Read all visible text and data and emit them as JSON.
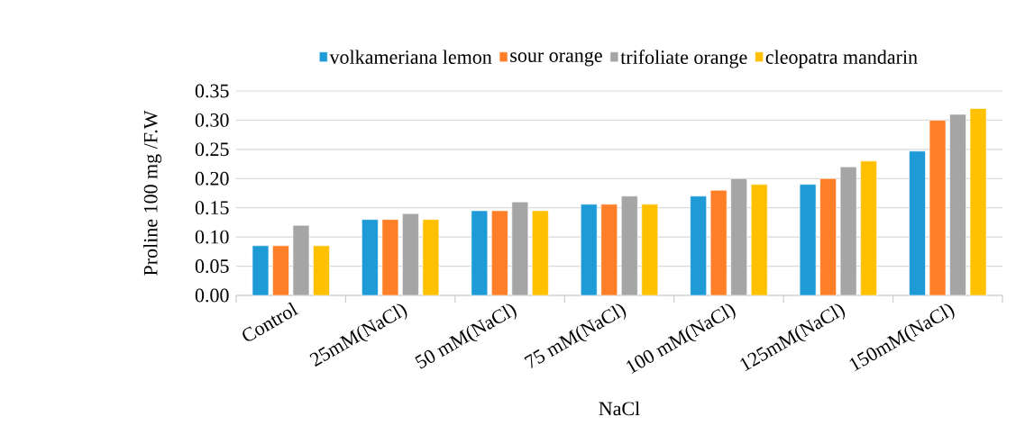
{
  "chart_data": {
    "type": "bar",
    "xlabel": "NaCl",
    "ylabel": "Proline 100 mg /F.W",
    "categories": [
      "Control",
      "25mM(NaCl)",
      "50 mM(NaCl)",
      "75 mM(NaCl)",
      "100 mM(NaCl)",
      "125mM(NaCl)",
      "150mM(NaCl)"
    ],
    "series": [
      {
        "name": "volkameriana lemon",
        "color": "#1e9ad6",
        "values": [
          0.085,
          0.13,
          0.145,
          0.156,
          0.17,
          0.19,
          0.247
        ]
      },
      {
        "name": "sour orange",
        "color": "#fe7f27",
        "values": [
          0.085,
          0.13,
          0.145,
          0.156,
          0.18,
          0.2,
          0.3
        ]
      },
      {
        "name": "trifoliate orange",
        "color": "#a5a5a5",
        "values": [
          0.12,
          0.14,
          0.16,
          0.17,
          0.2,
          0.22,
          0.31
        ]
      },
      {
        "name": "cleopatra mandarin",
        "color": "#ffc000",
        "values": [
          0.085,
          0.13,
          0.145,
          0.156,
          0.19,
          0.23,
          0.32
        ]
      }
    ],
    "ylim": [
      0,
      0.35
    ],
    "yticks": [
      {
        "value": 0,
        "label": "0.00"
      },
      {
        "value": 0.05,
        "label": "0.05"
      },
      {
        "value": 0.1,
        "label": "0.10"
      },
      {
        "value": 0.15,
        "label": "0.15"
      },
      {
        "value": 0.2,
        "label": "0.20"
      },
      {
        "value": 0.25,
        "label": "0.25"
      },
      {
        "value": 0.3,
        "label": "0.30"
      },
      {
        "value": 0.35,
        "label": "0.35"
      }
    ],
    "grid": "y",
    "legend": "top"
  }
}
